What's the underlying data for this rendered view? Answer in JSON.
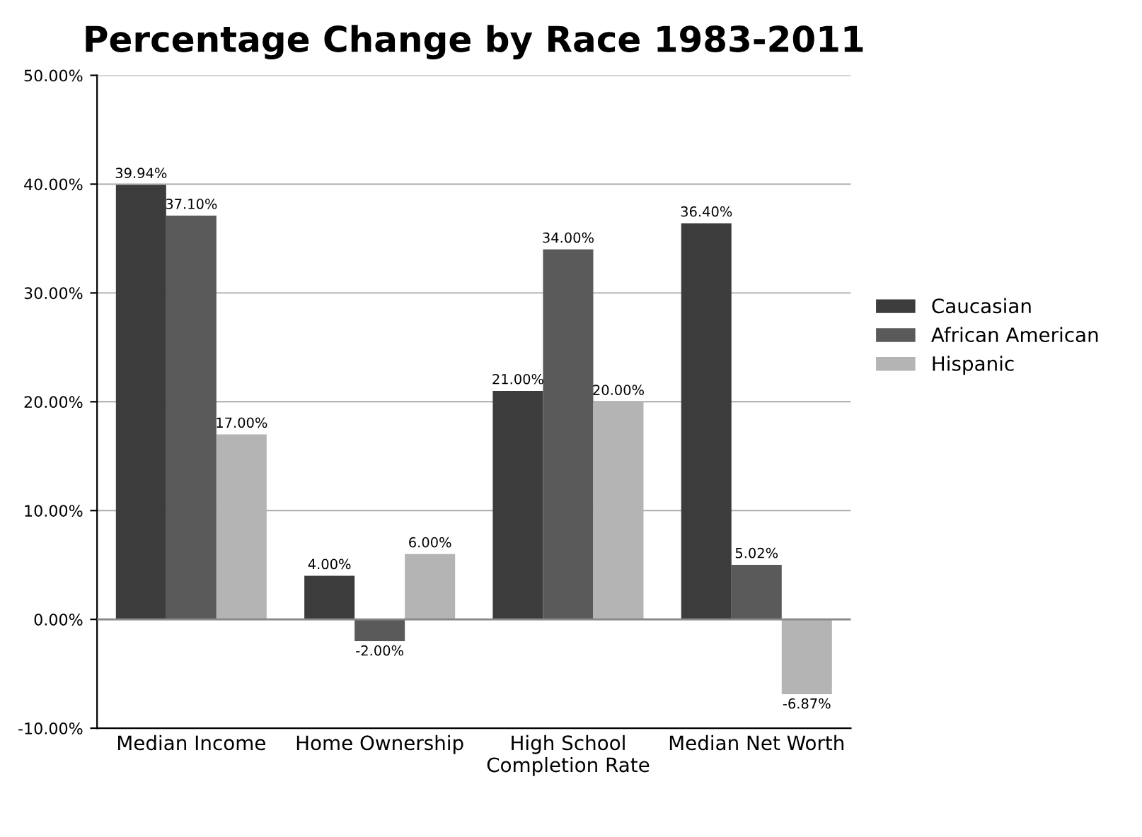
{
  "chart_data": {
    "type": "bar",
    "title": "Percentage Change by Race 1983-2011",
    "categories": [
      "Median Income",
      "Home Ownership",
      "High School\nCompletion Rate",
      "Median Net Worth"
    ],
    "series": [
      {
        "name": "Caucasian",
        "color": "#3c3c3c",
        "values": [
          39.94,
          4.0,
          21.0,
          36.4
        ],
        "value_labels": [
          "39.94%",
          "4.00%",
          "21.00%",
          "36.40%"
        ]
      },
      {
        "name": "African American",
        "color": "#5a5a5a",
        "values": [
          37.1,
          -2.0,
          34.0,
          5.02
        ],
        "value_labels": [
          "37.10%",
          "-2.00%",
          "34.00%",
          "5.02%"
        ]
      },
      {
        "name": "Hispanic",
        "color": "#b4b4b4",
        "values": [
          17.0,
          6.0,
          20.0,
          -6.87
        ],
        "value_labels": [
          "17.00%",
          "6.00%",
          "20.00%",
          "-6.87%"
        ]
      }
    ],
    "ylim": [
      -10,
      50
    ],
    "yticks": [
      {
        "value": -10,
        "label": "-10.00%"
      },
      {
        "value": 0,
        "label": "0.00%"
      },
      {
        "value": 10,
        "label": "10.00%"
      },
      {
        "value": 20,
        "label": "20.00%"
      },
      {
        "value": 30,
        "label": "30.00%"
      },
      {
        "value": 40,
        "label": "40.00%"
      },
      {
        "value": 50,
        "label": "50.00%"
      }
    ],
    "grid": "y",
    "legend": "right"
  }
}
